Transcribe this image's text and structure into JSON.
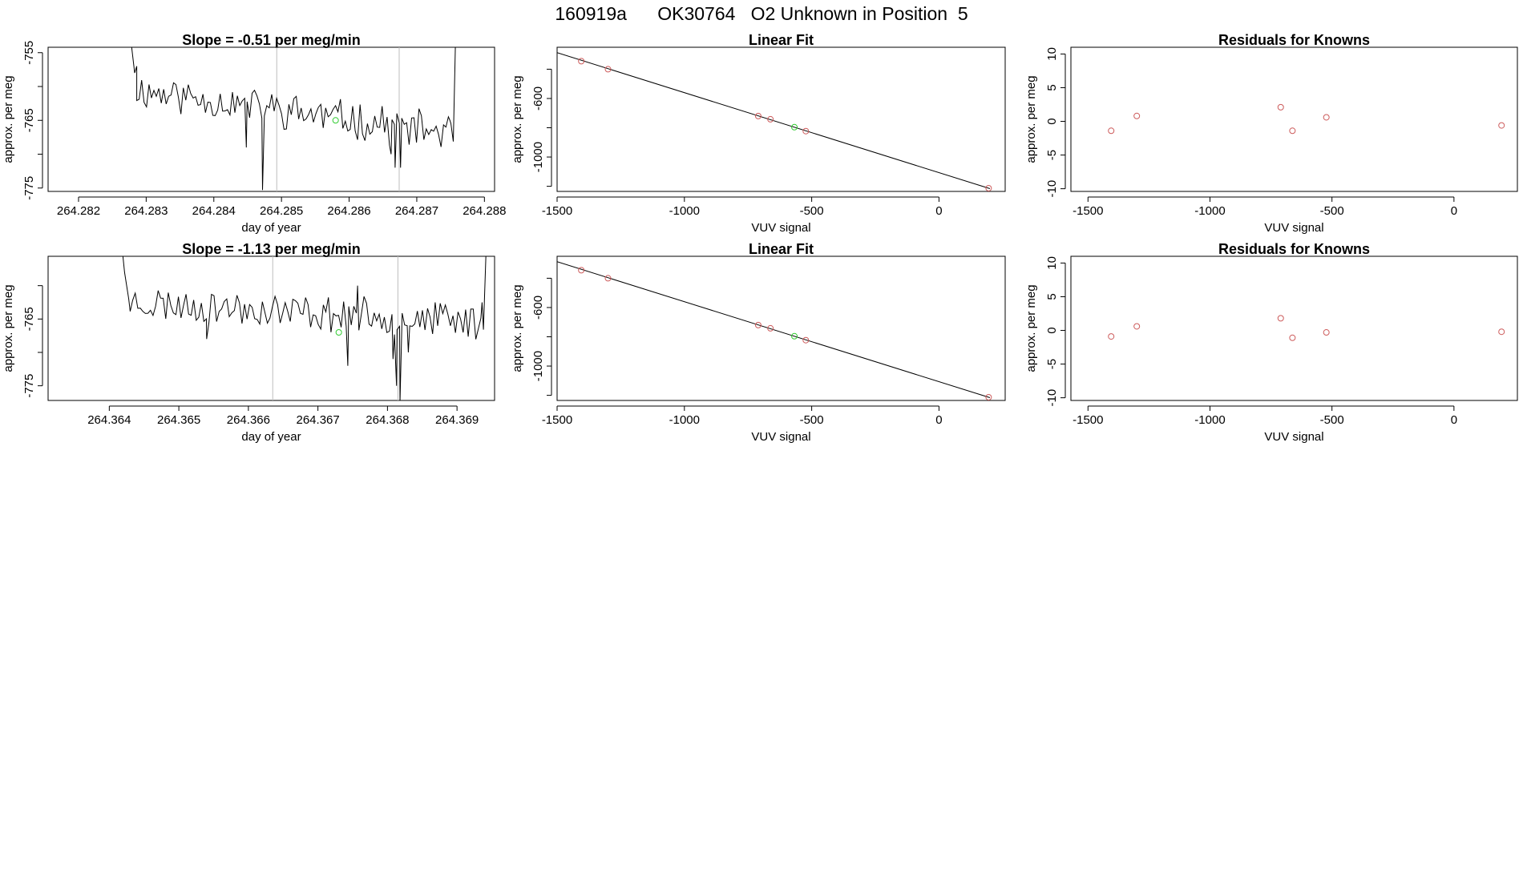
{
  "figure": {
    "title": "160919a      OK30764   O2 Unknown in Position  5"
  },
  "colors": {
    "line": "#000000",
    "known_point": "#cd5c5c",
    "unknown_point": "#33cc33",
    "vline": "#bebebe",
    "axis": "#000000"
  },
  "chart_data": [
    {
      "type": "line",
      "title": "Slope =  -0.51  per meg/min",
      "xlabel": "day of year",
      "ylabel": "approx. per meg",
      "xlim": [
        264.28155,
        264.28815
      ],
      "ylim": [
        -775.5,
        -754.2
      ],
      "xticks": [
        "264.282",
        "264.283",
        "264.284",
        "264.285",
        "264.286",
        "264.287",
        "264.288"
      ],
      "xtick_values": [
        264.282,
        264.283,
        264.284,
        264.285,
        264.286,
        264.287,
        264.288
      ],
      "yticks": [
        "-755",
        "-765",
        "-775"
      ],
      "ytick_values": [
        -755,
        -765,
        -775
      ],
      "yminor_ticks": [
        -760,
        -770
      ],
      "vlines": [
        264.28493,
        264.28674
      ],
      "series_seed": 11,
      "series": {
        "x_start": 264.28286,
        "x_end": 264.28754,
        "n": 130,
        "baseline_start": -760.5,
        "baseline_end": -767.0,
        "noise": 2.4,
        "head": [
          [
            264.28276,
            -752
          ],
          [
            264.28283,
            -758
          ],
          [
            264.28286,
            -757
          ]
        ],
        "tail": [
          [
            264.28749,
            -765
          ],
          [
            264.28757,
            -754
          ]
        ],
        "dips": [
          [
            264.28472,
            -775.3
          ],
          [
            264.28448,
            -769
          ],
          [
            264.28662,
            -770
          ],
          [
            264.28668,
            -772
          ],
          [
            264.28676,
            -772
          ]
        ]
      },
      "unknown_point": {
        "x": 264.2858,
        "y": -765.0
      }
    },
    {
      "type": "scatter",
      "title": "Linear Fit",
      "xlabel": "VUV signal",
      "ylabel": "approx. per meg",
      "xlim": [
        -1500,
        260
      ],
      "ylim": [
        -1235,
        -250
      ],
      "xticks": [
        "-1500",
        "-1000",
        "-500",
        "0"
      ],
      "xtick_values": [
        -1500,
        -1000,
        -500,
        0
      ],
      "yticks": [
        "-600",
        "-1000"
      ],
      "ytick_values": [
        -600,
        -1000
      ],
      "yminor_ticks": [
        -400,
        -800,
        -1200
      ],
      "fit_line": {
        "x": [
          -1500,
          200
        ],
        "y": [
          -287,
          -1216
        ]
      },
      "known_points": {
        "x": [
          -1405,
          -1300,
          -710,
          -662,
          -523,
          195
        ],
        "y": [
          -345,
          -400,
          -720,
          -742,
          -823,
          -1213
        ]
      },
      "unknown_point": {
        "x": -568,
        "y": -796
      }
    },
    {
      "type": "scatter",
      "title": "Residuals for Knowns",
      "xlabel": "VUV signal",
      "ylabel": "approx. per meg",
      "xlim": [
        -1570,
        260
      ],
      "ylim": [
        -10.4,
        11
      ],
      "xticks": [
        "-1500",
        "-1000",
        "-500",
        "0"
      ],
      "xtick_values": [
        -1500,
        -1000,
        -500,
        0
      ],
      "yticks": [
        "10",
        "5",
        "0",
        "-5",
        "-10"
      ],
      "ytick_values": [
        10,
        5,
        0,
        -5,
        -10
      ],
      "points": {
        "x": [
          -1405,
          -1300,
          -710,
          -662,
          -523,
          195
        ],
        "y": [
          -1.4,
          0.8,
          2.1,
          -1.4,
          0.6,
          -0.6
        ]
      }
    },
    {
      "type": "line",
      "title": "Slope =  -1.13  per meg/min",
      "xlabel": "day of year",
      "ylabel": "approx. per meg",
      "xlim": [
        264.36312,
        264.36954
      ],
      "ylim": [
        -777.2,
        -755.6
      ],
      "xticks": [
        "264.364",
        "264.365",
        "264.366",
        "264.367",
        "264.368",
        "264.369"
      ],
      "xtick_values": [
        264.364,
        264.365,
        264.366,
        264.367,
        264.368,
        264.369
      ],
      "yticks": [
        "-765",
        "-775"
      ],
      "ytick_values": [
        -765,
        -775
      ],
      "yminor_ticks": [
        -760,
        -770
      ],
      "vlines": [
        264.36635,
        264.36815
      ],
      "series_seed": 23,
      "series": {
        "x_start": 264.3643,
        "x_end": 264.36938,
        "n": 140,
        "baseline_start": -762.5,
        "baseline_end": -765.5,
        "noise": 2.3,
        "head": [
          [
            264.36418,
            -754
          ],
          [
            264.36422,
            -758
          ],
          [
            264.36428,
            -762
          ]
        ],
        "tail": [
          [
            264.36936,
            -762.5
          ],
          [
            264.36942,
            -754
          ]
        ],
        "dips": [
          [
            264.3654,
            -768
          ],
          [
            264.36743,
            -772
          ],
          [
            264.36757,
            -760
          ],
          [
            264.36808,
            -771
          ],
          [
            264.36813,
            -775
          ],
          [
            264.36818,
            -777.5
          ],
          [
            264.3683,
            -770
          ]
        ]
      },
      "unknown_point": {
        "x": 264.3673,
        "y": -767.0
      }
    },
    {
      "type": "scatter",
      "title": "Linear Fit",
      "xlabel": "VUV signal",
      "ylabel": "approx. per meg",
      "xlim": [
        -1500,
        260
      ],
      "ylim": [
        -1235,
        -250
      ],
      "xticks": [
        "-1500",
        "-1000",
        "-500",
        "0"
      ],
      "xtick_values": [
        -1500,
        -1000,
        -500,
        0
      ],
      "yticks": [
        "-600",
        "-1000"
      ],
      "ytick_values": [
        -600,
        -1000
      ],
      "yminor_ticks": [
        -400,
        -800,
        -1200
      ],
      "fit_line": {
        "x": [
          -1500,
          200
        ],
        "y": [
          -287,
          -1216
        ]
      },
      "known_points": {
        "x": [
          -1405,
          -1300,
          -710,
          -662,
          -523,
          195
        ],
        "y": [
          -345,
          -400,
          -720,
          -742,
          -823,
          -1213
        ]
      },
      "unknown_point": {
        "x": -568,
        "y": -796
      }
    },
    {
      "type": "scatter",
      "title": "Residuals for Knowns",
      "xlabel": "VUV signal",
      "ylabel": "approx. per meg",
      "xlim": [
        -1570,
        260
      ],
      "ylim": [
        -10.4,
        11
      ],
      "xticks": [
        "-1500",
        "-1000",
        "-500",
        "0"
      ],
      "xtick_values": [
        -1500,
        -1000,
        -500,
        0
      ],
      "yticks": [
        "10",
        "5",
        "0",
        "-5",
        "-10"
      ],
      "ytick_values": [
        10,
        5,
        0,
        -5,
        -10
      ],
      "points": {
        "x": [
          -1405,
          -1300,
          -710,
          -662,
          -523,
          195
        ],
        "y": [
          -0.9,
          0.6,
          1.8,
          -1.1,
          -0.3,
          -0.2
        ]
      }
    }
  ]
}
